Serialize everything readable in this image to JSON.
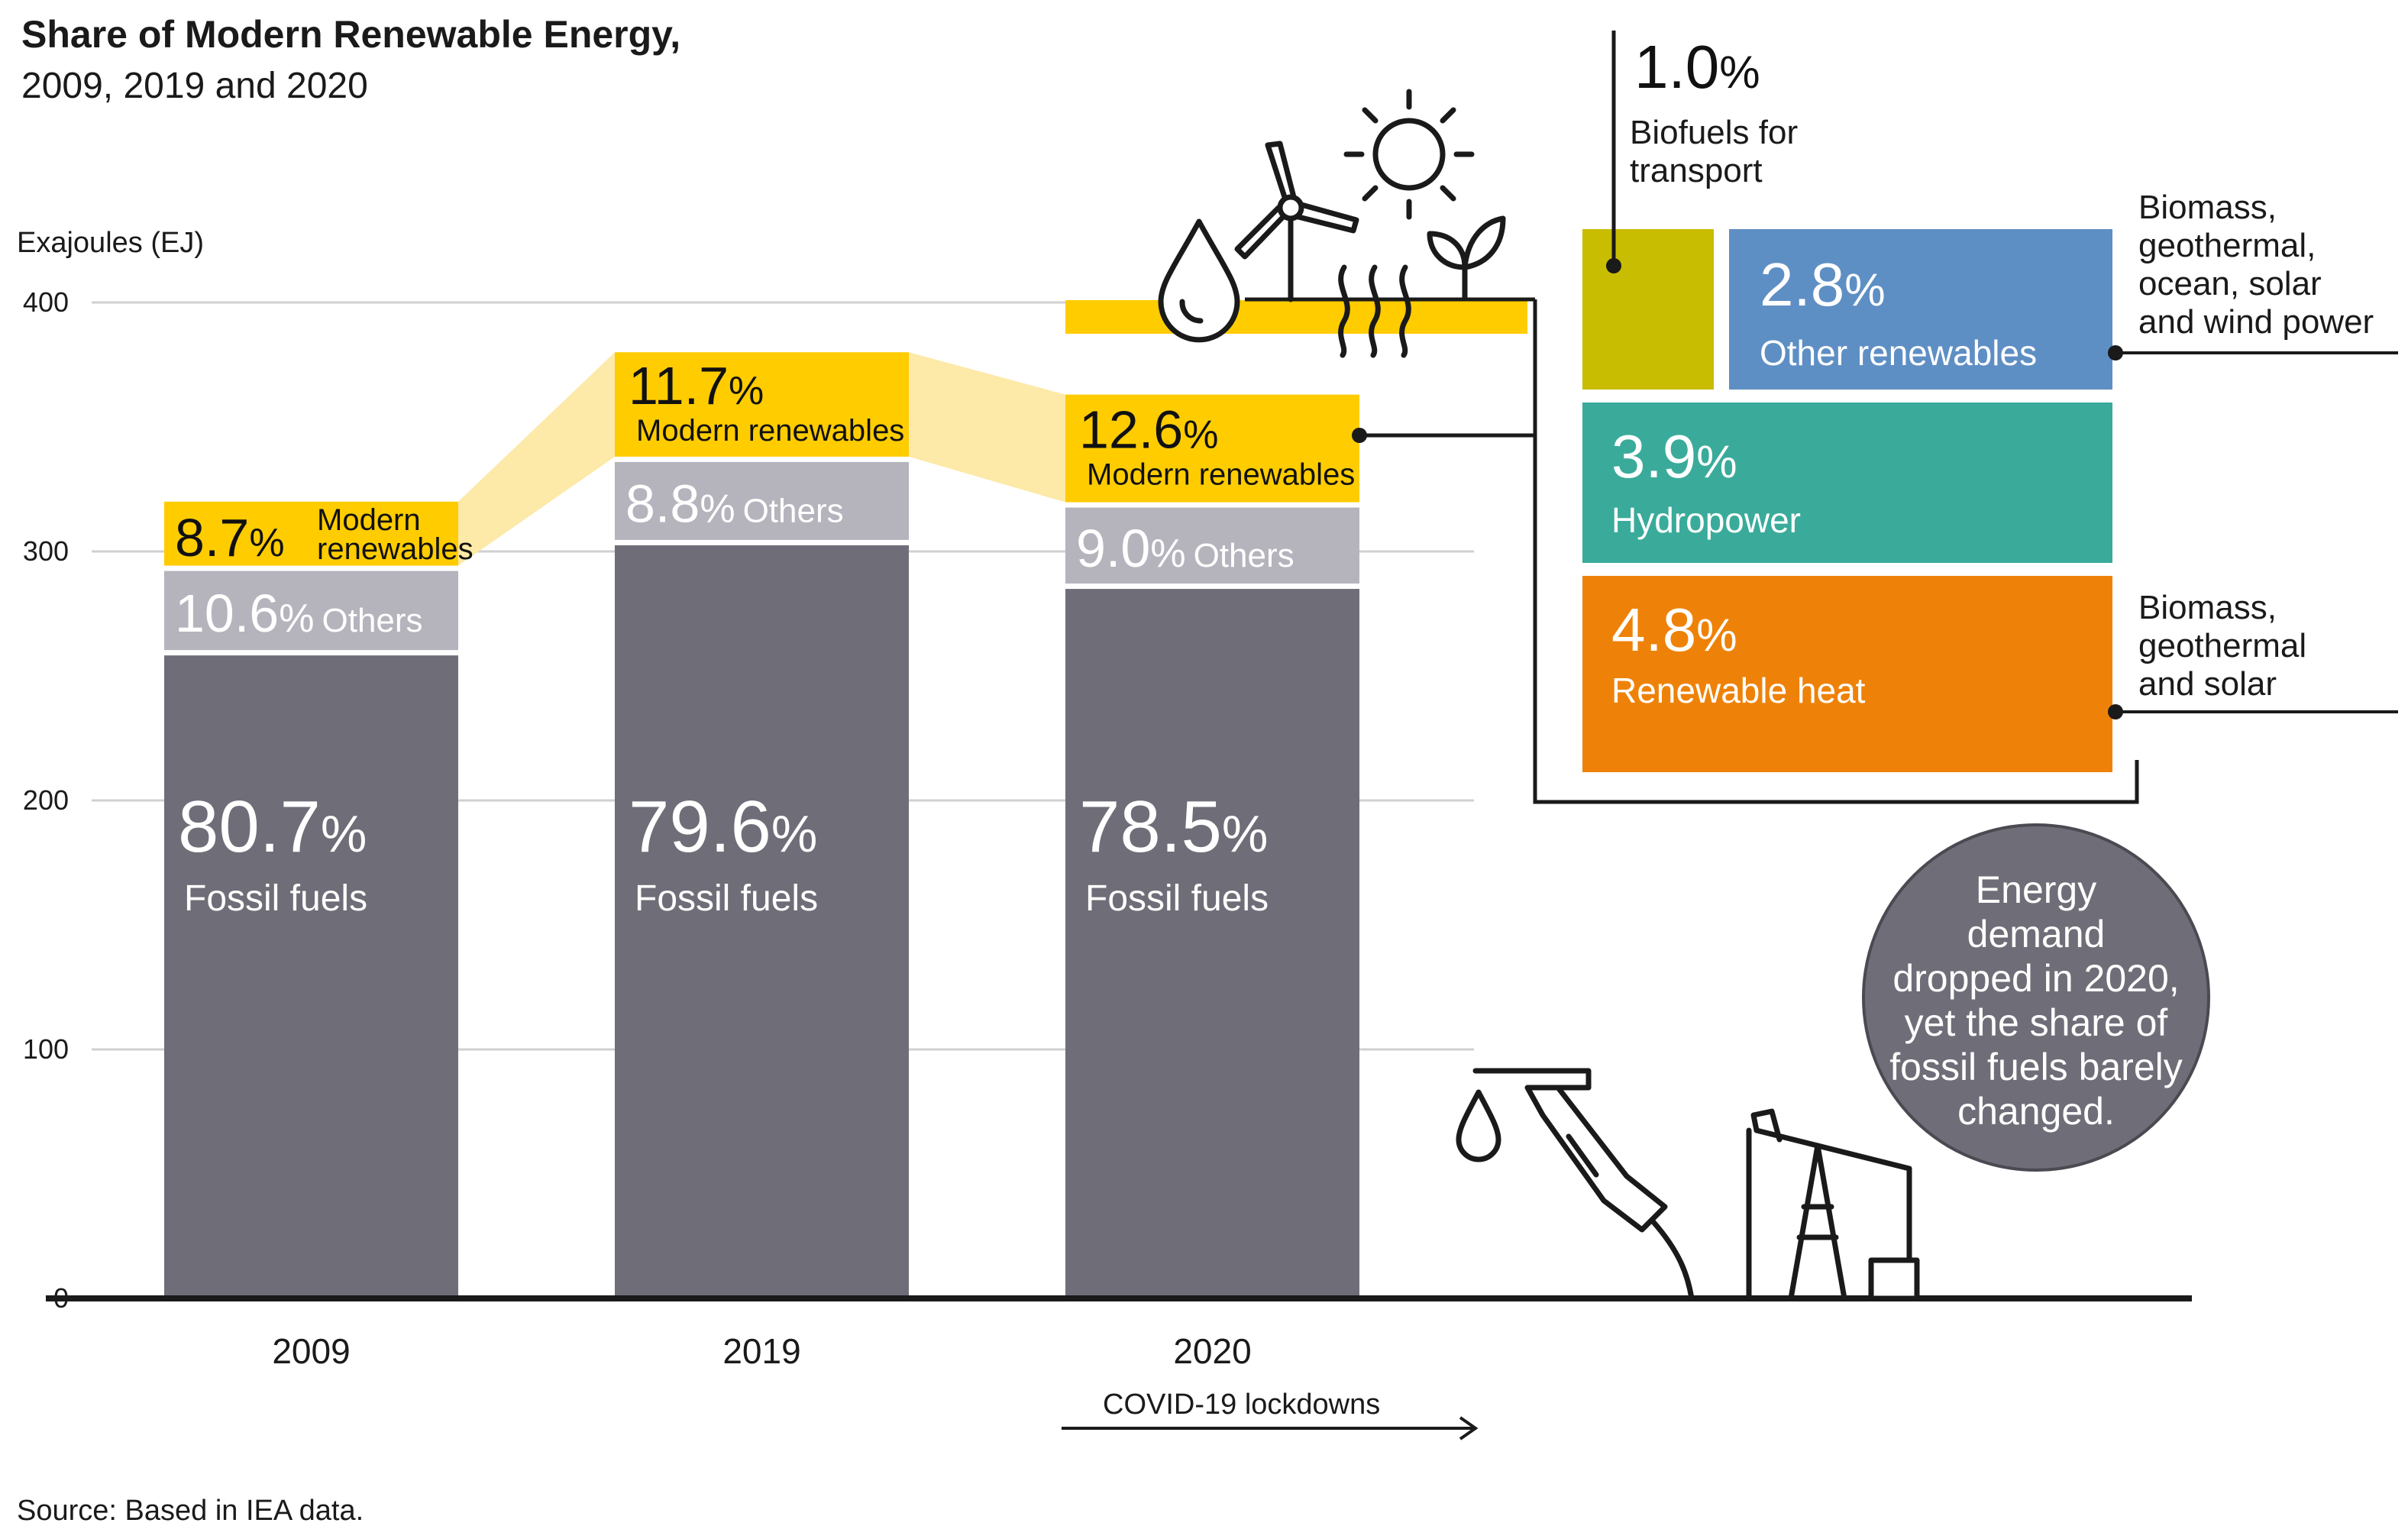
{
  "chart_data": {
    "type": "bar",
    "title": "Share of Modern Renewable Energy,",
    "subtitle": "2009, 2019 and 2020",
    "ylabel": "Exajoules (EJ)",
    "ylim": [
      0,
      400
    ],
    "yticks": [
      "0",
      "100",
      "200",
      "300",
      "400"
    ],
    "categories": [
      "2009",
      "2019",
      "2020"
    ],
    "totals_ej": [
      320,
      380,
      363
    ],
    "series": [
      {
        "name": "Fossil fuels",
        "values": [
          80.7,
          79.6,
          78.5
        ],
        "value_labels": [
          "80.7",
          "79.6",
          "78.5"
        ],
        "color": "#6f6e78"
      },
      {
        "name": "Others",
        "values": [
          10.6,
          8.8,
          9.0
        ],
        "value_labels": [
          "10.6",
          "8.8",
          "9.0"
        ],
        "color": "#b5b4bd"
      },
      {
        "name": "Modern renewables",
        "values": [
          8.7,
          11.7,
          12.6
        ],
        "value_labels": [
          "8.7",
          "11.7",
          "12.6"
        ],
        "color": "#ffcc00"
      }
    ],
    "pct_sign": "%",
    "fossil_label": "Fossil fuels",
    "others_label": "Others",
    "renew_label": "Modern renewables",
    "renew_label_2009": [
      "Modern",
      "renewables"
    ],
    "breakdown_2020": [
      {
        "name": "Biofuels for transport",
        "value": 1.0,
        "value_label": "1.0",
        "lines": [
          "Biofuels for",
          "transport"
        ],
        "color": "#c8bd00"
      },
      {
        "name": "Other renewables",
        "value": 2.8,
        "value_label": "2.8",
        "color": "#5e8fc4",
        "note": [
          "Biomass,",
          "geothermal,",
          "ocean, solar",
          "and wind power"
        ]
      },
      {
        "name": "Hydropower",
        "value": 3.9,
        "value_label": "3.9",
        "color": "#3aab9b"
      },
      {
        "name": "Renewable heat",
        "value": 4.8,
        "value_label": "4.8",
        "color": "#ee8208",
        "note": [
          "Biomass,",
          "geothermal",
          "and solar"
        ]
      }
    ],
    "annotation": "COVID-19 lockdowns",
    "bubble": [
      "Energy",
      "demand",
      "dropped in 2020,",
      "yet the share of",
      "fossil fuels barely",
      "changed."
    ],
    "source": "Source: Based in IEA data.",
    "colors": {
      "fossil": "#6f6e78",
      "others": "#b5b4bd",
      "renew": "#ffcc00",
      "bubble": "#6f6e78"
    }
  }
}
